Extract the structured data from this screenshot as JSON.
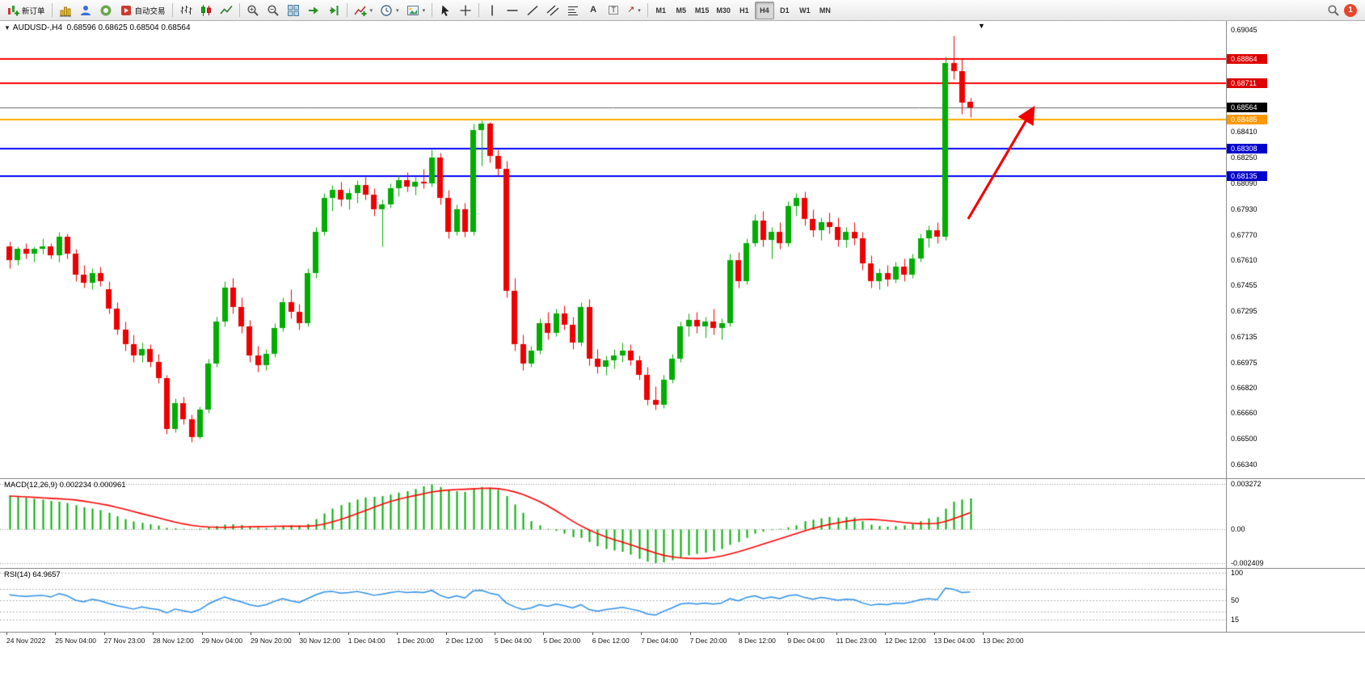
{
  "app": {
    "notification_count": "1"
  },
  "toolbar": {
    "new_order_label": "新订单",
    "autotrade_label": "自动交易",
    "timeframes": [
      "M1",
      "M5",
      "M15",
      "M30",
      "H1",
      "H4",
      "D1",
      "W1",
      "MN"
    ],
    "active_timeframe": "H4",
    "icons": [
      "new-order-icon",
      "charts-icon",
      "profile-icon",
      "community-icon",
      "autotrade-icon",
      "bars-icon",
      "candles-icon",
      "line-chart-icon",
      "zoom-in-icon",
      "zoom-out-icon",
      "tile-windows-icon",
      "auto-scroll-icon",
      "chart-shift-icon",
      "indicators-icon",
      "periods-icon",
      "templates-icon",
      "cursor-icon",
      "crosshair-icon",
      "vertical-line-icon",
      "horizontal-line-icon",
      "trendline-icon",
      "channel-icon",
      "fibonacci-icon",
      "text-icon",
      "label-icon",
      "arrows-icon",
      "search-icon",
      "notification-badge"
    ]
  },
  "chart_data": {
    "type": "candlestick",
    "symbol_period": "AUDUSD-,H4",
    "ohlc_line": "0.68596 0.68625 0.68504 0.68564",
    "colors": {
      "bull": "#00ad00",
      "bear": "#ef0000",
      "signal": "#ff0000",
      "rsi": "#2a8fe8",
      "hline_red": "#ff0000",
      "hline_orange": "#ffaa00",
      "hline_blue": "#0000ff",
      "bid_line": "#666666",
      "arrow": "#f00000"
    },
    "price_axis": {
      "top": 0.69045,
      "bottom": 0.6634,
      "ticks": [
        "0.69045",
        "0.68410",
        "0.68250",
        "0.68090",
        "0.67930",
        "0.67770",
        "0.67610",
        "0.67455",
        "0.67295",
        "0.67135",
        "0.66975",
        "0.66820",
        "0.66660",
        "0.66500",
        "0.66340"
      ]
    },
    "hlines": [
      {
        "price": 0.68864,
        "label": "0.68864",
        "color": "#ff0000",
        "width": 2,
        "badge": "#dd0000"
      },
      {
        "price": 0.68711,
        "label": "0.68711",
        "color": "#ff0000",
        "width": 2,
        "badge": "#dd0000"
      },
      {
        "price": 0.68564,
        "label": "0.68564",
        "color": "#666666",
        "width": 1,
        "badge": "#000000"
      },
      {
        "price": 0.68485,
        "label": "0.68485",
        "color": "#ffaa00",
        "width": 2,
        "badge": "#ff9800"
      },
      {
        "price": 0.68308,
        "label": "0.68308",
        "color": "#0000ff",
        "width": 2,
        "badge": "#0000cc"
      },
      {
        "price": 0.68135,
        "label": "0.68135",
        "color": "#0000ff",
        "width": 2,
        "badge": "#0000cc"
      }
    ],
    "ohlc": [
      [
        0.677,
        0.6773,
        0.6756,
        0.6761
      ],
      [
        0.6761,
        0.677,
        0.6758,
        0.6768
      ],
      [
        0.6768,
        0.6772,
        0.6762,
        0.6765
      ],
      [
        0.6765,
        0.677,
        0.676,
        0.6768
      ],
      [
        0.6768,
        0.6775,
        0.6765,
        0.677
      ],
      [
        0.677,
        0.6772,
        0.6762,
        0.6764
      ],
      [
        0.6764,
        0.6779,
        0.676,
        0.6776
      ],
      [
        0.6776,
        0.6778,
        0.6762,
        0.6765
      ],
      [
        0.6765,
        0.6768,
        0.6748,
        0.6752
      ],
      [
        0.6752,
        0.6758,
        0.6744,
        0.6747
      ],
      [
        0.6747,
        0.6756,
        0.6743,
        0.6753
      ],
      [
        0.6753,
        0.6757,
        0.6745,
        0.6748
      ],
      [
        0.6743,
        0.6748,
        0.6728,
        0.6731
      ],
      [
        0.6731,
        0.6735,
        0.6715,
        0.6718
      ],
      [
        0.6718,
        0.6723,
        0.6705,
        0.6709
      ],
      [
        0.6709,
        0.6715,
        0.6698,
        0.6702
      ],
      [
        0.6702,
        0.671,
        0.6698,
        0.6706
      ],
      [
        0.6706,
        0.6709,
        0.6695,
        0.6698
      ],
      [
        0.6698,
        0.6703,
        0.6685,
        0.6688
      ],
      [
        0.6688,
        0.669,
        0.6653,
        0.6656
      ],
      [
        0.6656,
        0.6675,
        0.6654,
        0.6672
      ],
      [
        0.6672,
        0.6676,
        0.6659,
        0.6662
      ],
      [
        0.6662,
        0.6665,
        0.6648,
        0.6651
      ],
      [
        0.6651,
        0.667,
        0.665,
        0.6668
      ],
      [
        0.6668,
        0.67,
        0.6666,
        0.6697
      ],
      [
        0.6697,
        0.6726,
        0.6695,
        0.6723
      ],
      [
        0.6723,
        0.6748,
        0.672,
        0.6744
      ],
      [
        0.6744,
        0.675,
        0.6728,
        0.6732
      ],
      [
        0.6732,
        0.6738,
        0.6716,
        0.672
      ],
      [
        0.672,
        0.6724,
        0.6698,
        0.6702
      ],
      [
        0.6702,
        0.6708,
        0.6692,
        0.6696
      ],
      [
        0.6696,
        0.6706,
        0.6693,
        0.6703
      ],
      [
        0.6703,
        0.6722,
        0.6701,
        0.6719
      ],
      [
        0.6719,
        0.6738,
        0.6717,
        0.6735
      ],
      [
        0.6735,
        0.6743,
        0.6725,
        0.6729
      ],
      [
        0.6729,
        0.6734,
        0.6718,
        0.6722
      ],
      [
        0.6722,
        0.6756,
        0.672,
        0.6753
      ],
      [
        0.6753,
        0.6782,
        0.675,
        0.6779
      ],
      [
        0.6779,
        0.6803,
        0.6777,
        0.68
      ],
      [
        0.68,
        0.6808,
        0.6792,
        0.6805
      ],
      [
        0.6805,
        0.681,
        0.6795,
        0.6799
      ],
      [
        0.6799,
        0.6806,
        0.6793,
        0.6803
      ],
      [
        0.6803,
        0.6811,
        0.6797,
        0.6808
      ],
      [
        0.6808,
        0.6813,
        0.6799,
        0.6802
      ],
      [
        0.6802,
        0.6806,
        0.6789,
        0.6793
      ],
      [
        0.6793,
        0.6799,
        0.677,
        0.6796
      ],
      [
        0.6796,
        0.6809,
        0.6794,
        0.6806
      ],
      [
        0.6806,
        0.6814,
        0.6801,
        0.6811
      ],
      [
        0.6811,
        0.6816,
        0.6804,
        0.6807
      ],
      [
        0.6807,
        0.6813,
        0.6802,
        0.681
      ],
      [
        0.681,
        0.6818,
        0.6806,
        0.6809
      ],
      [
        0.6809,
        0.683,
        0.6807,
        0.6825
      ],
      [
        0.6825,
        0.6828,
        0.6796,
        0.68
      ],
      [
        0.68,
        0.6805,
        0.6775,
        0.6779
      ],
      [
        0.6779,
        0.6796,
        0.6777,
        0.6793
      ],
      [
        0.6793,
        0.6797,
        0.6776,
        0.6779
      ],
      [
        0.6779,
        0.6846,
        0.6777,
        0.6842
      ],
      [
        0.6842,
        0.6848,
        0.682,
        0.6846
      ],
      [
        0.6846,
        0.6847,
        0.6822,
        0.6826
      ],
      [
        0.6826,
        0.683,
        0.6814,
        0.6818
      ],
      [
        0.6818,
        0.6823,
        0.6738,
        0.6742
      ],
      [
        0.6742,
        0.675,
        0.6705,
        0.6709
      ],
      [
        0.6709,
        0.6715,
        0.6693,
        0.6697
      ],
      [
        0.6697,
        0.6708,
        0.6695,
        0.6705
      ],
      [
        0.6705,
        0.6725,
        0.6703,
        0.6722
      ],
      [
        0.6722,
        0.6729,
        0.6712,
        0.6716
      ],
      [
        0.6716,
        0.6731,
        0.6714,
        0.6728
      ],
      [
        0.6728,
        0.6733,
        0.6718,
        0.6721
      ],
      [
        0.6721,
        0.6726,
        0.6706,
        0.671
      ],
      [
        0.671,
        0.6735,
        0.6708,
        0.6732
      ],
      [
        0.6732,
        0.6737,
        0.6696,
        0.67
      ],
      [
        0.67,
        0.6706,
        0.6691,
        0.6695
      ],
      [
        0.6695,
        0.6702,
        0.669,
        0.6699
      ],
      [
        0.6699,
        0.6706,
        0.6694,
        0.6702
      ],
      [
        0.6702,
        0.671,
        0.6698,
        0.6705
      ],
      [
        0.6705,
        0.6709,
        0.6696,
        0.6699
      ],
      [
        0.6699,
        0.6702,
        0.6687,
        0.669
      ],
      [
        0.669,
        0.6695,
        0.6671,
        0.6674
      ],
      [
        0.6674,
        0.6683,
        0.6668,
        0.6671
      ],
      [
        0.6671,
        0.669,
        0.6669,
        0.6687
      ],
      [
        0.6687,
        0.6703,
        0.6685,
        0.67
      ],
      [
        0.67,
        0.6723,
        0.6698,
        0.672
      ],
      [
        0.672,
        0.6728,
        0.6714,
        0.6724
      ],
      [
        0.6724,
        0.6729,
        0.6716,
        0.672
      ],
      [
        0.672,
        0.6726,
        0.6713,
        0.6723
      ],
      [
        0.6723,
        0.6731,
        0.6715,
        0.6719
      ],
      [
        0.6719,
        0.6725,
        0.6712,
        0.6722
      ],
      [
        0.6722,
        0.6765,
        0.672,
        0.6761
      ],
      [
        0.6761,
        0.6766,
        0.6744,
        0.6748
      ],
      [
        0.6748,
        0.6775,
        0.6746,
        0.6772
      ],
      [
        0.6772,
        0.679,
        0.677,
        0.6786
      ],
      [
        0.6786,
        0.6792,
        0.677,
        0.6774
      ],
      [
        0.6774,
        0.6782,
        0.6762,
        0.6779
      ],
      [
        0.6779,
        0.6785,
        0.6768,
        0.6772
      ],
      [
        0.6772,
        0.6798,
        0.677,
        0.6795
      ],
      [
        0.6795,
        0.6803,
        0.6789,
        0.68
      ],
      [
        0.68,
        0.6804,
        0.6783,
        0.6787
      ],
      [
        0.6787,
        0.6793,
        0.6776,
        0.678
      ],
      [
        0.678,
        0.6788,
        0.6774,
        0.6785
      ],
      [
        0.6785,
        0.6791,
        0.6778,
        0.6782
      ],
      [
        0.6782,
        0.6788,
        0.677,
        0.6774
      ],
      [
        0.6774,
        0.6782,
        0.6769,
        0.6779
      ],
      [
        0.6779,
        0.6785,
        0.6771,
        0.6775
      ],
      [
        0.6775,
        0.6779,
        0.6755,
        0.6759
      ],
      [
        0.6759,
        0.6764,
        0.6744,
        0.6748
      ],
      [
        0.6748,
        0.6756,
        0.6743,
        0.6753
      ],
      [
        0.6753,
        0.6758,
        0.6745,
        0.6749
      ],
      [
        0.6749,
        0.676,
        0.6747,
        0.6757
      ],
      [
        0.6757,
        0.6762,
        0.6748,
        0.6752
      ],
      [
        0.6752,
        0.6765,
        0.675,
        0.6762
      ],
      [
        0.6762,
        0.6778,
        0.676,
        0.6775
      ],
      [
        0.6775,
        0.6783,
        0.6769,
        0.678
      ],
      [
        0.678,
        0.6785,
        0.6772,
        0.6776
      ],
      [
        0.6776,
        0.6888,
        0.6774,
        0.6884
      ],
      [
        0.6884,
        0.6901,
        0.6874,
        0.6879
      ],
      [
        0.6879,
        0.6887,
        0.6852,
        0.6859
      ],
      [
        0.68596,
        0.68625,
        0.68504,
        0.68564
      ]
    ],
    "time_axis": [
      "24 Nov 2022",
      "25 Nov 04:00",
      "27 Nov 23:00",
      "28 Nov 12:00",
      "29 Nov 04:00",
      "29 Nov 20:00",
      "30 Nov 12:00",
      "1 Dec 04:00",
      "1 Dec 20:00",
      "2 Dec 12:00",
      "5 Dec 04:00",
      "5 Dec 20:00",
      "6 Dec 12:00",
      "7 Dec 04:00",
      "7 Dec 20:00",
      "8 Dec 12:00",
      "9 Dec 04:00",
      "11 Dec 23:00",
      "12 Dec 12:00",
      "13 Dec 04:00",
      "13 Dec 20:00"
    ],
    "macd": {
      "label": "MACD(12,26,9)",
      "values_text": "0.002234 0.000961",
      "axis": [
        {
          "v": 0.003272,
          "label": "0.003272"
        },
        {
          "v": 0,
          "label": "0.00"
        },
        {
          "v": -0.002409,
          "label": "-0.002409"
        }
      ],
      "hist": [
        0.0024,
        0.00235,
        0.00228,
        0.0022,
        0.00215,
        0.00205,
        0.002,
        0.0019,
        0.00175,
        0.0016,
        0.0015,
        0.0014,
        0.0012,
        0.00095,
        0.00075,
        0.00058,
        0.00048,
        0.00038,
        0.00028,
        0.00012,
        8e-05,
        5e-05,
        3e-05,
        6e-05,
        0.00015,
        0.00025,
        0.00035,
        0.00038,
        0.00032,
        0.00022,
        0.00012,
        0.0001,
        0.00015,
        0.00025,
        0.0003,
        0.00028,
        0.0004,
        0.00075,
        0.00115,
        0.0015,
        0.00175,
        0.00195,
        0.00215,
        0.0023,
        0.00235,
        0.0024,
        0.0025,
        0.00265,
        0.00275,
        0.0029,
        0.0031,
        0.00325,
        0.00305,
        0.00285,
        0.00275,
        0.0027,
        0.0029,
        0.00305,
        0.003,
        0.00285,
        0.0024,
        0.0018,
        0.0012,
        0.0006,
        0.0003,
        5e-05,
        -0.0001,
        -0.0003,
        -0.00055,
        -0.0006,
        -0.0009,
        -0.0012,
        -0.0014,
        -0.0015,
        -0.0016,
        -0.0018,
        -0.0021,
        -0.0023,
        -0.00241,
        -0.00235,
        -0.0022,
        -0.002,
        -0.00185,
        -0.00175,
        -0.00165,
        -0.00155,
        -0.0014,
        -0.0011,
        -0.0009,
        -0.0006,
        -0.0003,
        -0.00015,
        -5e-05,
        5e-05,
        0.00015,
        0.0003,
        0.0006,
        0.0007,
        0.0008,
        0.0009,
        0.00085,
        0.0009,
        0.00085,
        0.0006,
        0.00035,
        0.00025,
        0.0002,
        0.00025,
        0.0003,
        0.0004,
        0.0006,
        0.0008,
        0.0009,
        0.0015,
        0.002,
        0.00215,
        0.002234
      ]
    },
    "rsi": {
      "label": "RSI(14)",
      "value_text": "64.9657",
      "axis": [
        {
          "v": 100,
          "label": "100"
        },
        {
          "v": 50,
          "label": "50"
        },
        {
          "v": 15,
          "label": "15"
        }
      ],
      "levels": [
        70,
        30
      ],
      "values": [
        60,
        58,
        57,
        58,
        59,
        56,
        62,
        58,
        50,
        47,
        52,
        49,
        44,
        40,
        37,
        34,
        38,
        35,
        33,
        27,
        34,
        31,
        28,
        33,
        43,
        50,
        56,
        51,
        47,
        42,
        39,
        42,
        48,
        53,
        49,
        46,
        53,
        60,
        65,
        66,
        63,
        64,
        66,
        63,
        59,
        61,
        64,
        66,
        64,
        65,
        64,
        68,
        59,
        54,
        58,
        54,
        67,
        68,
        63,
        60,
        45,
        38,
        33,
        36,
        42,
        39,
        43,
        40,
        36,
        42,
        33,
        30,
        33,
        35,
        37,
        34,
        31,
        25,
        23,
        30,
        36,
        43,
        45,
        43,
        45,
        43,
        45,
        53,
        49,
        55,
        58,
        53,
        56,
        53,
        58,
        60,
        55,
        52,
        55,
        53,
        50,
        52,
        51,
        45,
        41,
        43,
        42,
        45,
        44,
        47,
        51,
        53,
        51,
        72,
        70,
        64,
        64.97
      ]
    }
  }
}
